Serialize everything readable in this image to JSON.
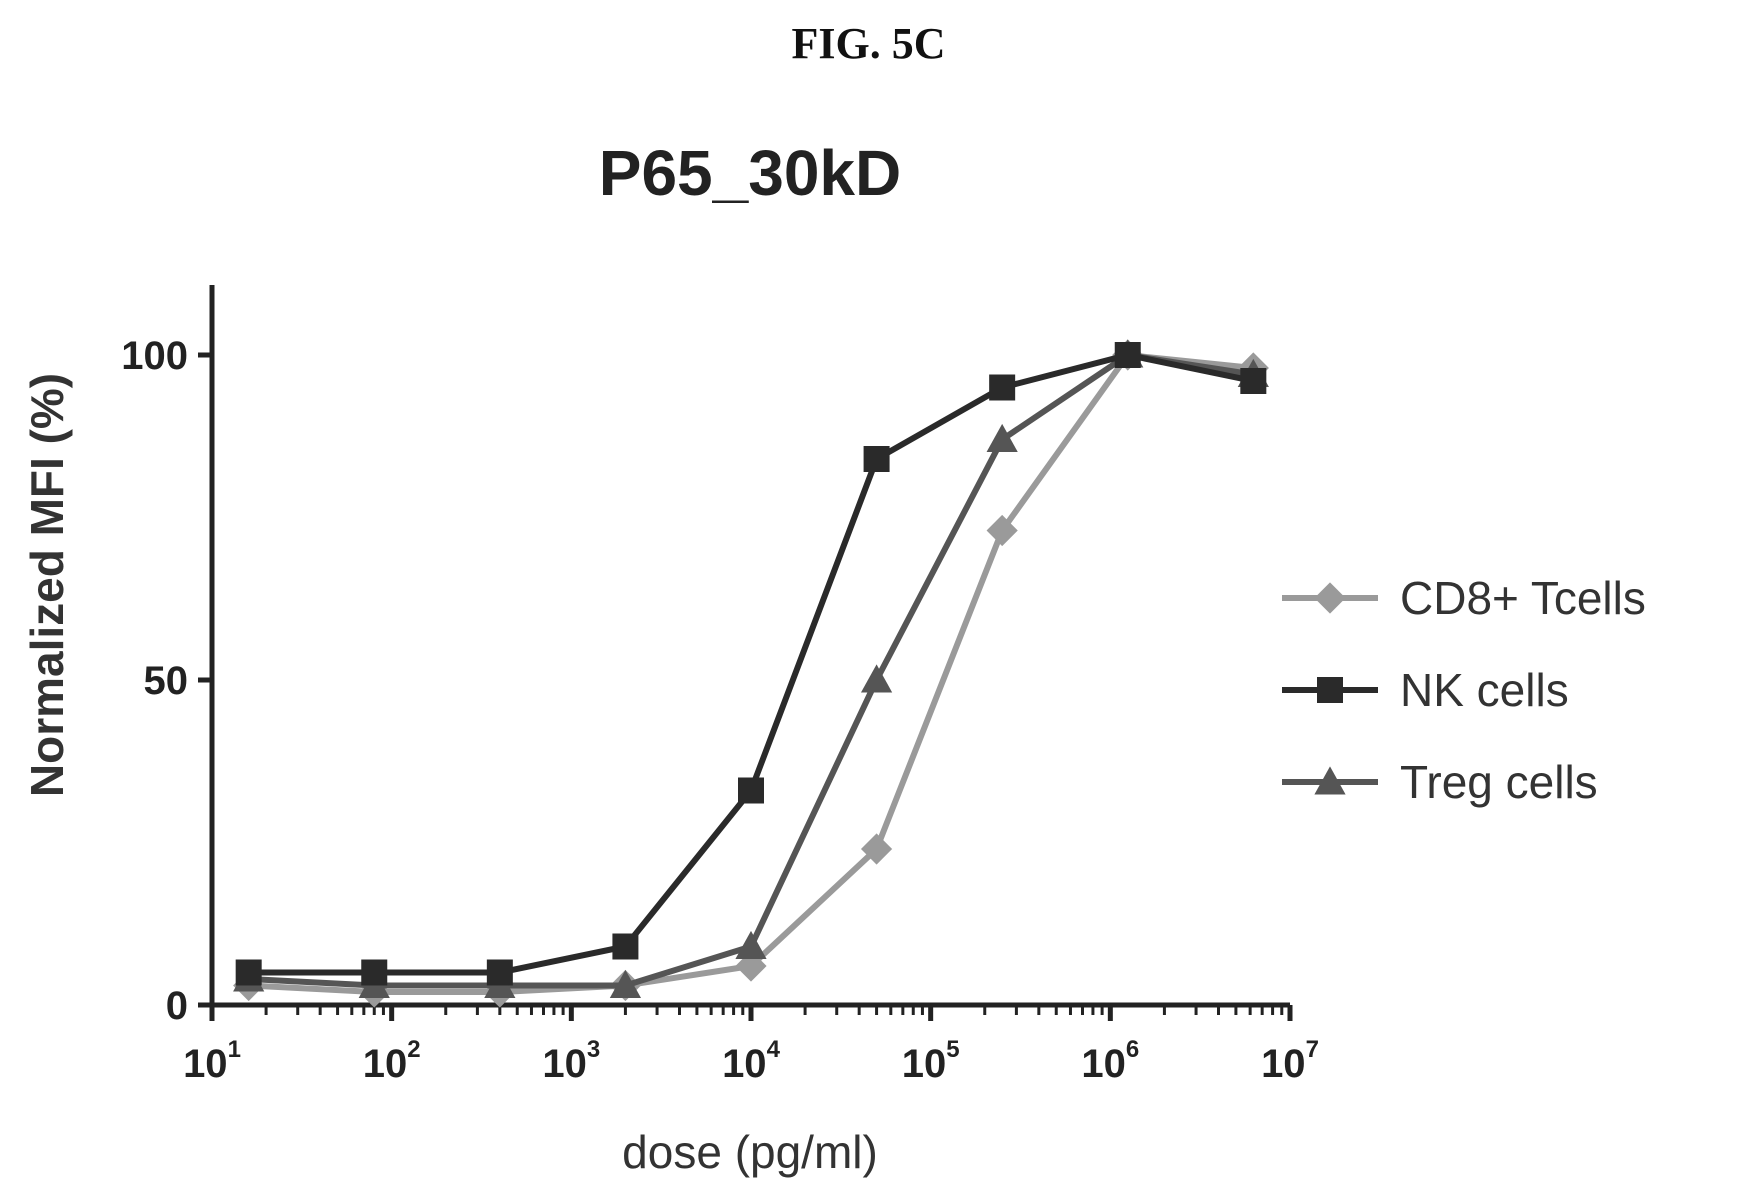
{
  "figure_label": "FIG. 5C",
  "chart_data": {
    "type": "line",
    "title": "P65_30kD",
    "xlabel": "dose (pg/ml)",
    "ylabel": "Normalized MFI (%)",
    "x_scale": "log",
    "xlim": [
      10,
      10000000
    ],
    "ylim": [
      0,
      100
    ],
    "x_ticks": [
      {
        "base": "10",
        "exp": "1",
        "value": 10
      },
      {
        "base": "10",
        "exp": "2",
        "value": 100
      },
      {
        "base": "10",
        "exp": "3",
        "value": 1000
      },
      {
        "base": "10",
        "exp": "4",
        "value": 10000
      },
      {
        "base": "10",
        "exp": "5",
        "value": 100000
      },
      {
        "base": "10",
        "exp": "6",
        "value": 1000000
      },
      {
        "base": "10",
        "exp": "7",
        "value": 10000000
      }
    ],
    "y_ticks": [
      "0",
      "50",
      "100"
    ],
    "y_tick_values": [
      0,
      50,
      100
    ],
    "x": [
      16,
      80,
      400,
      2000,
      10000,
      50000,
      250000,
      1250000,
      6250000
    ],
    "series": [
      {
        "name": "CD8+ Tcells",
        "marker": "diamond",
        "color": "#9a9a9a",
        "values": [
          3,
          2,
          2,
          3,
          6,
          24,
          73,
          100,
          98
        ]
      },
      {
        "name": "NK cells",
        "marker": "square",
        "color": "#2a2a2a",
        "values": [
          5,
          5,
          5,
          9,
          33,
          84,
          95,
          100,
          96
        ]
      },
      {
        "name": "Treg cells",
        "marker": "triangle",
        "color": "#555555",
        "values": [
          4,
          3,
          3,
          3,
          9,
          50,
          87,
          100,
          97
        ]
      }
    ],
    "legend_position": "right"
  }
}
